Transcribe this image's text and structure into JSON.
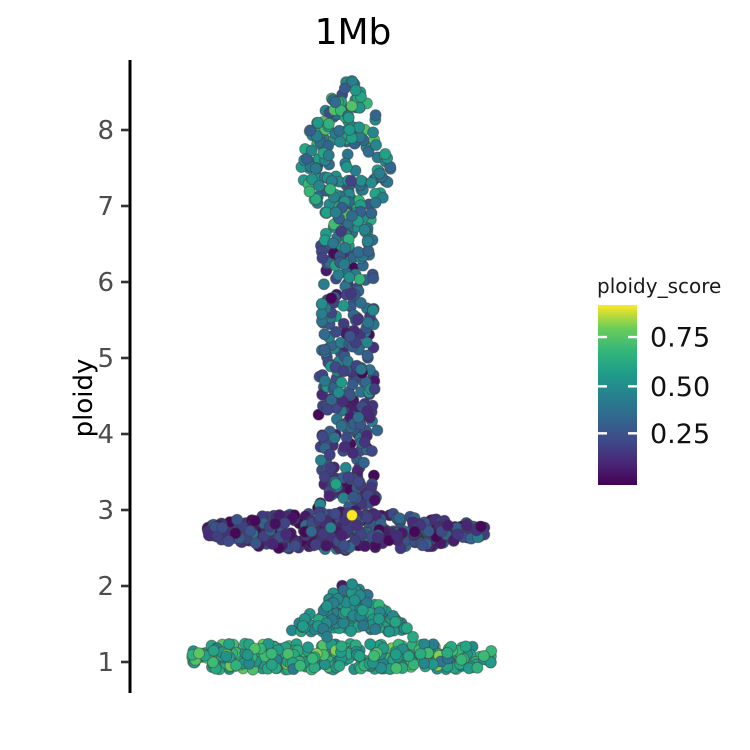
{
  "title": "1Mb",
  "y_axis": {
    "label": "ploidy",
    "tick_values": [
      1,
      2,
      3,
      4,
      5,
      6,
      7,
      8
    ],
    "tick_labels": [
      "1",
      "2",
      "3",
      "4",
      "5",
      "6",
      "7",
      "8"
    ]
  },
  "legend": {
    "title": "ploidy_score",
    "tick_labels": [
      "0.75",
      "0.50",
      "0.25"
    ],
    "tick_fractions_from_top": [
      0.178,
      0.452,
      0.713
    ]
  },
  "colors": {
    "background": "#ffffff",
    "axis_line": "#000000",
    "tick_mark": "#333333",
    "point_stroke": "rgba(60,60,60,0.45)"
  },
  "chart_data": {
    "type": "scatter",
    "subtype": "sina-violin-jitter",
    "title": "1Mb",
    "x_category": "1Mb",
    "ylabel": "ploidy",
    "ylim": [
      0.6,
      8.9
    ],
    "y_ticks": [
      1,
      2,
      3,
      4,
      5,
      6,
      7,
      8
    ],
    "color_variable": "ploidy_score",
    "legend_ticks": [
      0.75,
      0.5,
      0.25
    ],
    "colorscale": {
      "name": "viridis",
      "domain": [
        0,
        0.92
      ],
      "stops": [
        [
          0.0,
          "#440154"
        ],
        [
          0.125,
          "#482878"
        ],
        [
          0.25,
          "#3e4a89"
        ],
        [
          0.375,
          "#31688e"
        ],
        [
          0.5,
          "#26828e"
        ],
        [
          0.625,
          "#1f9e89"
        ],
        [
          0.75,
          "#35b779"
        ],
        [
          0.875,
          "#6dcd59"
        ],
        [
          1.0,
          "#fde725"
        ]
      ]
    },
    "point_radius": 5.5,
    "seed": 42,
    "clusters": [
      {
        "name": "main-column",
        "kind": "violin",
        "count": 540,
        "x_center": 347,
        "profile": [
          [
            2.98,
            34
          ],
          [
            3.1,
            30
          ],
          [
            3.4,
            27
          ],
          [
            3.8,
            28
          ],
          [
            4.2,
            32
          ],
          [
            4.6,
            28
          ],
          [
            5.5,
            27
          ],
          [
            6.5,
            27
          ],
          [
            6.85,
            31
          ],
          [
            7.15,
            39
          ],
          [
            7.45,
            46
          ],
          [
            7.75,
            45
          ],
          [
            8.05,
            35
          ],
          [
            8.3,
            24
          ],
          [
            8.5,
            14
          ],
          [
            8.68,
            5
          ]
        ],
        "score": {
          "by_ploidy": [
            [
              4.5,
              0.2
            ],
            [
              6.5,
              0.32
            ],
            [
              9.0,
              0.48
            ]
          ],
          "sd": 0.13,
          "clamp": [
            0.02,
            0.75
          ]
        }
      },
      {
        "name": "wide-blob-ploidy-2.7",
        "kind": "lens",
        "count": 410,
        "x_center": 345,
        "x_halfwidth": 140,
        "ploidy_center": 2.72,
        "ploidy_halfthickness": 0.26,
        "taper_exp": 0.6,
        "score": {
          "mean": 0.18,
          "sd": 0.11,
          "clamp": [
            0.02,
            0.55
          ]
        }
      },
      {
        "name": "hill-ploidy-1.7",
        "kind": "triangle",
        "count": 145,
        "x_center": 350,
        "base_halfwidth": 62,
        "ploidy_base": 1.4,
        "ploidy_top": 2.05,
        "score": {
          "mean": 0.52,
          "sd": 0.07,
          "clamp": [
            0.33,
            0.68
          ]
        },
        "dark_top": {
          "threshold": 0.86,
          "prob": 0.5,
          "score": 0.07
        }
      },
      {
        "name": "flat-band-ploidy-1.1",
        "kind": "band",
        "count": 350,
        "x_center": 342,
        "x_halfwidth": 150,
        "ploidy_min": 0.9,
        "ploidy_max": 1.24,
        "score": {
          "mean": 0.63,
          "sd": 0.09,
          "clamp": [
            0.4,
            0.82
          ]
        }
      }
    ],
    "outliers": [
      {
        "x": 352,
        "ploidy": 2.93,
        "score": 0.95
      },
      {
        "x": 327,
        "ploidy": 1.33,
        "score": 0.45
      },
      {
        "x": 413,
        "ploidy": 1.33,
        "score": 0.62
      }
    ]
  }
}
